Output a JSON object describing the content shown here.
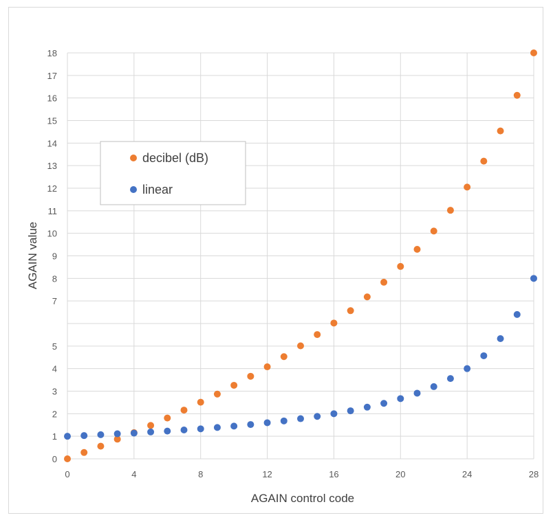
{
  "chart_data": {
    "type": "scatter",
    "title": "",
    "xlabel": "AGAIN control code",
    "ylabel": "AGAIN value",
    "xlim": [
      0,
      28
    ],
    "ylim": [
      0,
      18
    ],
    "x_ticks": [
      "0",
      "4",
      "8",
      "12",
      "16",
      "20",
      "24",
      "28"
    ],
    "y_ticks": [
      "0",
      "1",
      "2",
      "3",
      "4",
      "5",
      "7",
      "8",
      "9",
      "10",
      "11",
      "12",
      "13",
      "14",
      "15",
      "16",
      "17",
      "18"
    ],
    "grid": true,
    "legend_position": "upper-left",
    "series": [
      {
        "name": "decibel (dB)",
        "color": "#ed7d31",
        "x": [
          0,
          1,
          2,
          3,
          4,
          5,
          6,
          7,
          8,
          9,
          10,
          11,
          12,
          13,
          14,
          15,
          16,
          17,
          18,
          19,
          20,
          21,
          22,
          23,
          24,
          25,
          26,
          27,
          28
        ],
        "y": [
          0,
          0.28,
          0.56,
          0.87,
          1.16,
          1.48,
          1.81,
          2.16,
          2.51,
          2.87,
          3.26,
          3.66,
          4.08,
          4.53,
          5.01,
          5.51,
          6.02,
          6.57,
          7.18,
          7.83,
          8.53,
          9.29,
          10.1,
          11.02,
          12.05,
          13.2,
          14.54,
          16.12,
          18.0
        ]
      },
      {
        "name": "linear",
        "color": "#4472c4",
        "x": [
          0,
          1,
          2,
          3,
          4,
          5,
          6,
          7,
          8,
          9,
          10,
          11,
          12,
          13,
          14,
          15,
          16,
          17,
          18,
          19,
          20,
          21,
          22,
          23,
          24,
          25,
          26,
          27,
          28
        ],
        "y": [
          1.0,
          1.03,
          1.07,
          1.11,
          1.14,
          1.19,
          1.23,
          1.28,
          1.33,
          1.39,
          1.45,
          1.52,
          1.6,
          1.68,
          1.78,
          1.88,
          2.0,
          2.13,
          2.29,
          2.46,
          2.67,
          2.91,
          3.2,
          3.56,
          4.0,
          4.57,
          5.33,
          6.4,
          8.0
        ]
      }
    ]
  }
}
